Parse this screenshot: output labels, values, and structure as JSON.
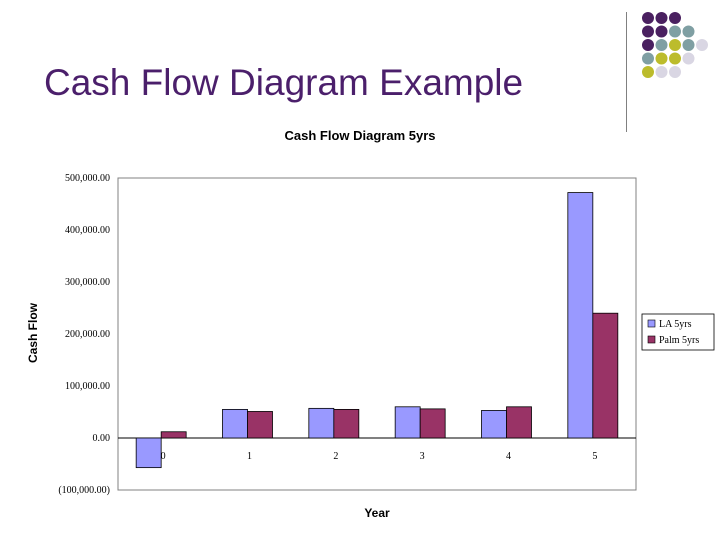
{
  "slide": {
    "title": "Cash Flow Diagram Example"
  },
  "decoration": {
    "dot_colors": {
      "purple": "#4a2060",
      "teal": "#7f9fa3",
      "yellow": "#bcbc2c",
      "lavender": "#d9d6e3"
    },
    "dot_grid": [
      [
        "purple",
        "purple",
        "purple",
        null,
        null
      ],
      [
        "purple",
        "purple",
        "teal",
        "teal",
        null
      ],
      [
        "purple",
        "teal",
        "yellow",
        "teal",
        "lavender"
      ],
      [
        "teal",
        "yellow",
        "yellow",
        "lavender",
        null
      ],
      [
        "yellow",
        "lavender",
        "lavender",
        null,
        null
      ]
    ]
  },
  "chart_data": {
    "type": "bar",
    "title": "Cash Flow Diagram 5yrs",
    "xlabel": "Year",
    "ylabel": "Cash Flow",
    "categories": [
      "0",
      "1",
      "2",
      "3",
      "4",
      "5"
    ],
    "ylim": [
      -100000,
      500000
    ],
    "yticks": [
      "500,000.00",
      "400,000.00",
      "300,000.00",
      "200,000.00",
      "100,000.00",
      "0.00",
      "(100,000.00)"
    ],
    "grid": false,
    "legend_position": "right",
    "series": [
      {
        "name": "LA 5yrs",
        "color": "#9999ff",
        "values": [
          -57000,
          55000,
          57000,
          60000,
          53000,
          472000
        ]
      },
      {
        "name": "Palm 5yrs",
        "color": "#993366",
        "values": [
          12000,
          51000,
          55000,
          56000,
          60000,
          240000
        ]
      }
    ]
  }
}
